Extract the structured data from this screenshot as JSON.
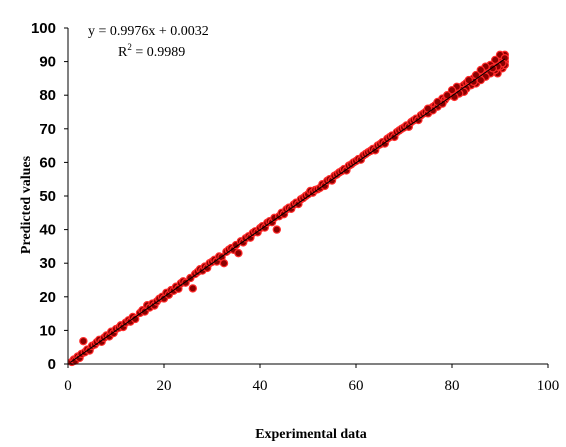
{
  "chart_data": {
    "type": "scatter",
    "xlabel": "Experimental data",
    "ylabel": "Predicted values",
    "xlim": [
      0,
      100
    ],
    "ylim": [
      0,
      100
    ],
    "xticks": [
      "0",
      "20",
      "40",
      "60",
      "80",
      "100"
    ],
    "yticks": [
      "0",
      "10",
      "20",
      "30",
      "40",
      "50",
      "60",
      "70",
      "80",
      "90",
      "100"
    ],
    "grid": false,
    "annotation": {
      "equation": "y = 0.9976x + 0.0032",
      "r2_prefix": "R",
      "r2_superscript": "2",
      "r2_value": " = 0.9989"
    },
    "trendline": {
      "slope": 0.9976,
      "intercept": 0.0032,
      "x_range": [
        0.5,
        91
      ]
    },
    "colors": {
      "point_fill": "#8b0000",
      "point_stroke": "#ff2a2a",
      "trendline": "#000000"
    },
    "series": [
      {
        "points": [
          [
            0.8,
            0.6
          ],
          [
            1.2,
            1.3
          ],
          [
            1.5,
            1.0
          ],
          [
            2.0,
            2.2
          ],
          [
            2.4,
            1.8
          ],
          [
            2.8,
            3.0
          ],
          [
            3.2,
            6.8
          ],
          [
            3.5,
            3.5
          ],
          [
            4.0,
            4.3
          ],
          [
            4.5,
            4.0
          ],
          [
            5.0,
            5.4
          ],
          [
            5.6,
            5.8
          ],
          [
            6.0,
            6.5
          ],
          [
            6.5,
            7.2
          ],
          [
            7.0,
            6.6
          ],
          [
            7.5,
            7.8
          ],
          [
            8.0,
            8.5
          ],
          [
            8.6,
            8.2
          ],
          [
            9.0,
            9.6
          ],
          [
            9.5,
            9.2
          ],
          [
            10.0,
            10.4
          ],
          [
            10.6,
            10.8
          ],
          [
            11.0,
            11.5
          ],
          [
            11.5,
            11.0
          ],
          [
            12.0,
            12.3
          ],
          [
            12.6,
            13.0
          ],
          [
            13.0,
            12.6
          ],
          [
            13.5,
            14.0
          ],
          [
            14.0,
            13.4
          ],
          [
            15.0,
            15.2
          ],
          [
            15.5,
            16.0
          ],
          [
            16.0,
            15.6
          ],
          [
            16.5,
            17.5
          ],
          [
            17.0,
            16.8
          ],
          [
            17.6,
            18.0
          ],
          [
            18.0,
            17.4
          ],
          [
            18.5,
            18.6
          ],
          [
            19.0,
            19.4
          ],
          [
            19.6,
            20.0
          ],
          [
            20.0,
            19.5
          ],
          [
            20.5,
            21.2
          ],
          [
            21.0,
            20.6
          ],
          [
            21.5,
            22.0
          ],
          [
            22.0,
            21.8
          ],
          [
            22.5,
            23.0
          ],
          [
            23.0,
            22.4
          ],
          [
            23.5,
            24.0
          ],
          [
            24.0,
            24.6
          ],
          [
            24.5,
            24.2
          ],
          [
            25.5,
            25.6
          ],
          [
            26.0,
            22.5
          ],
          [
            26.5,
            26.8
          ],
          [
            27.0,
            27.4
          ],
          [
            27.5,
            28.2
          ],
          [
            28.0,
            27.8
          ],
          [
            28.5,
            29.0
          ],
          [
            29.0,
            28.6
          ],
          [
            29.5,
            30.0
          ],
          [
            30.0,
            30.4
          ],
          [
            30.5,
            31.0
          ],
          [
            31.0,
            30.5
          ],
          [
            31.5,
            32.0
          ],
          [
            32.0,
            31.8
          ],
          [
            32.5,
            30.0
          ],
          [
            33.0,
            33.4
          ],
          [
            33.5,
            34.0
          ],
          [
            34.0,
            34.5
          ],
          [
            34.5,
            34.0
          ],
          [
            35.0,
            35.4
          ],
          [
            35.5,
            33.0
          ],
          [
            36.0,
            36.5
          ],
          [
            36.5,
            36.2
          ],
          [
            37.0,
            37.4
          ],
          [
            37.6,
            38.0
          ],
          [
            38.0,
            37.6
          ],
          [
            38.5,
            39.0
          ],
          [
            39.0,
            39.5
          ],
          [
            39.5,
            39.2
          ],
          [
            40.0,
            40.4
          ],
          [
            40.5,
            41.0
          ],
          [
            41.0,
            40.6
          ],
          [
            41.5,
            42.0
          ],
          [
            42.0,
            42.5
          ],
          [
            42.5,
            42.2
          ],
          [
            43.0,
            43.5
          ],
          [
            43.5,
            40.0
          ],
          [
            44.0,
            44.0
          ],
          [
            44.5,
            45.0
          ],
          [
            45.0,
            44.6
          ],
          [
            45.5,
            46.0
          ],
          [
            46.0,
            46.5
          ],
          [
            46.5,
            46.2
          ],
          [
            47.0,
            47.4
          ],
          [
            47.5,
            48.0
          ],
          [
            48.0,
            47.6
          ],
          [
            48.5,
            49.0
          ],
          [
            49.0,
            49.4
          ],
          [
            49.5,
            50.0
          ],
          [
            50.0,
            50.5
          ],
          [
            50.5,
            51.5
          ],
          [
            51.0,
            51.0
          ],
          [
            51.5,
            51.8
          ],
          [
            52.0,
            52.0
          ],
          [
            52.5,
            52.4
          ],
          [
            53.0,
            53.5
          ],
          [
            53.5,
            53.0
          ],
          [
            54.0,
            54.5
          ],
          [
            54.5,
            55.0
          ],
          [
            55.0,
            54.6
          ],
          [
            55.5,
            56.0
          ],
          [
            56.0,
            56.4
          ],
          [
            56.5,
            57.0
          ],
          [
            57.0,
            57.4
          ],
          [
            57.5,
            58.0
          ],
          [
            58.0,
            57.6
          ],
          [
            58.5,
            59.0
          ],
          [
            59.0,
            59.4
          ],
          [
            59.5,
            60.0
          ],
          [
            60.0,
            60.4
          ],
          [
            60.5,
            61.0
          ],
          [
            61.0,
            60.8
          ],
          [
            61.5,
            62.0
          ],
          [
            62.0,
            62.5
          ],
          [
            62.5,
            63.0
          ],
          [
            63.0,
            63.4
          ],
          [
            63.5,
            64.0
          ],
          [
            64.0,
            63.6
          ],
          [
            64.5,
            65.0
          ],
          [
            65.0,
            65.4
          ],
          [
            65.5,
            66.0
          ],
          [
            66.0,
            65.6
          ],
          [
            66.5,
            67.0
          ],
          [
            67.0,
            67.5
          ],
          [
            67.5,
            68.0
          ],
          [
            68.0,
            67.6
          ],
          [
            68.5,
            69.0
          ],
          [
            69.0,
            69.5
          ],
          [
            69.5,
            70.0
          ],
          [
            70.0,
            70.4
          ],
          [
            70.5,
            71.0
          ],
          [
            71.0,
            70.6
          ],
          [
            71.5,
            72.0
          ],
          [
            72.0,
            72.5
          ],
          [
            72.5,
            73.0
          ],
          [
            73.0,
            72.6
          ],
          [
            73.5,
            74.0
          ],
          [
            74.0,
            74.5
          ],
          [
            74.5,
            75.0
          ],
          [
            75.0,
            74.6
          ],
          [
            75.5,
            76.0
          ],
          [
            76.0,
            76.5
          ],
          [
            76.5,
            77.0
          ],
          [
            77.0,
            76.6
          ],
          [
            77.5,
            78.0
          ],
          [
            78.0,
            79.0
          ],
          [
            78.5,
            78.6
          ],
          [
            79.0,
            79.5
          ],
          [
            79.5,
            80.0
          ],
          [
            80.0,
            80.5
          ],
          [
            80.5,
            81.0
          ],
          [
            81.0,
            80.6
          ],
          [
            81.5,
            82.0
          ],
          [
            82.0,
            82.5
          ],
          [
            82.5,
            83.0
          ],
          [
            83.0,
            83.6
          ],
          [
            83.5,
            84.0
          ],
          [
            84.0,
            84.5
          ],
          [
            84.5,
            85.0
          ],
          [
            85.0,
            84.6
          ],
          [
            85.5,
            86.0
          ],
          [
            86.0,
            86.5
          ],
          [
            86.5,
            87.0
          ],
          [
            87.0,
            87.6
          ],
          [
            87.5,
            88.0
          ],
          [
            88.0,
            88.5
          ],
          [
            88.5,
            89.0
          ],
          [
            89.0,
            89.5
          ],
          [
            89.5,
            90.0
          ],
          [
            90.0,
            90.6
          ],
          [
            90.5,
            91.0
          ],
          [
            91.0,
            92.0
          ],
          [
            91.0,
            90.0
          ],
          [
            90.5,
            88.0
          ],
          [
            89.5,
            86.5
          ],
          [
            88.5,
            87.0
          ],
          [
            87.0,
            86.0
          ],
          [
            86.0,
            85.0
          ],
          [
            85.0,
            83.5
          ],
          [
            84.0,
            83.0
          ],
          [
            83.0,
            82.0
          ],
          [
            82.0,
            81.5
          ],
          [
            81.0,
            82.5
          ],
          [
            80.0,
            81.5
          ],
          [
            79.0,
            80.0
          ],
          [
            78.0,
            77.5
          ],
          [
            90.0,
            92.0
          ],
          [
            89.0,
            90.5
          ],
          [
            88.0,
            89.0
          ],
          [
            87.0,
            88.5
          ],
          [
            86.0,
            87.5
          ],
          [
            85.0,
            86.0
          ],
          [
            91.0,
            89.0
          ],
          [
            90.0,
            88.5
          ],
          [
            89.0,
            87.5
          ],
          [
            88.0,
            86.5
          ],
          [
            87.0,
            85.5
          ],
          [
            86.0,
            84.5
          ],
          [
            91.0,
            91.0
          ],
          [
            90.5,
            89.5
          ],
          [
            89.5,
            88.5
          ],
          [
            88.5,
            88.0
          ],
          [
            84.5,
            84.0
          ],
          [
            83.5,
            84.5
          ],
          [
            82.5,
            81.0
          ],
          [
            81.5,
            80.5
          ],
          [
            80.5,
            79.5
          ],
          [
            77.0,
            78.0
          ],
          [
            76.0,
            75.5
          ],
          [
            75.0,
            76.0
          ]
        ]
      }
    ]
  }
}
